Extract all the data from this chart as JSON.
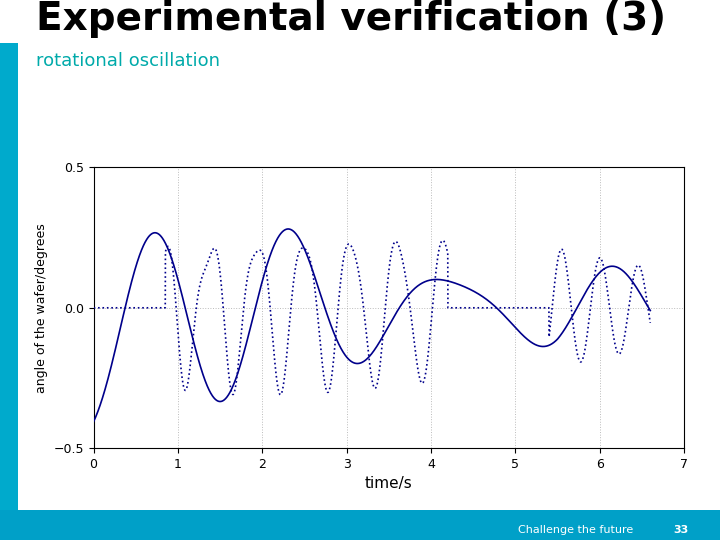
{
  "title": "Experimental verification (3)",
  "subtitle": "rotational oscillation",
  "xlabel": "time/s",
  "ylabel": "angle of the wafer/degrees",
  "xlim": [
    0,
    7
  ],
  "ylim": [
    -0.5,
    0.5
  ],
  "yticks": [
    -0.5,
    0,
    0.5
  ],
  "xticks": [
    0,
    1,
    2,
    3,
    4,
    5,
    6,
    7
  ],
  "title_fontsize": 28,
  "subtitle_fontsize": 13,
  "subtitle_color": "#00AAAA",
  "line_color": "#00008B",
  "background_color": "#FFFFFF",
  "left_bar_color": "#00AACC",
  "bottom_bar_color": "#00AACC",
  "footer_text": "Challenge the future",
  "slide_number": "33",
  "tudelft_color": "#00A0C8"
}
